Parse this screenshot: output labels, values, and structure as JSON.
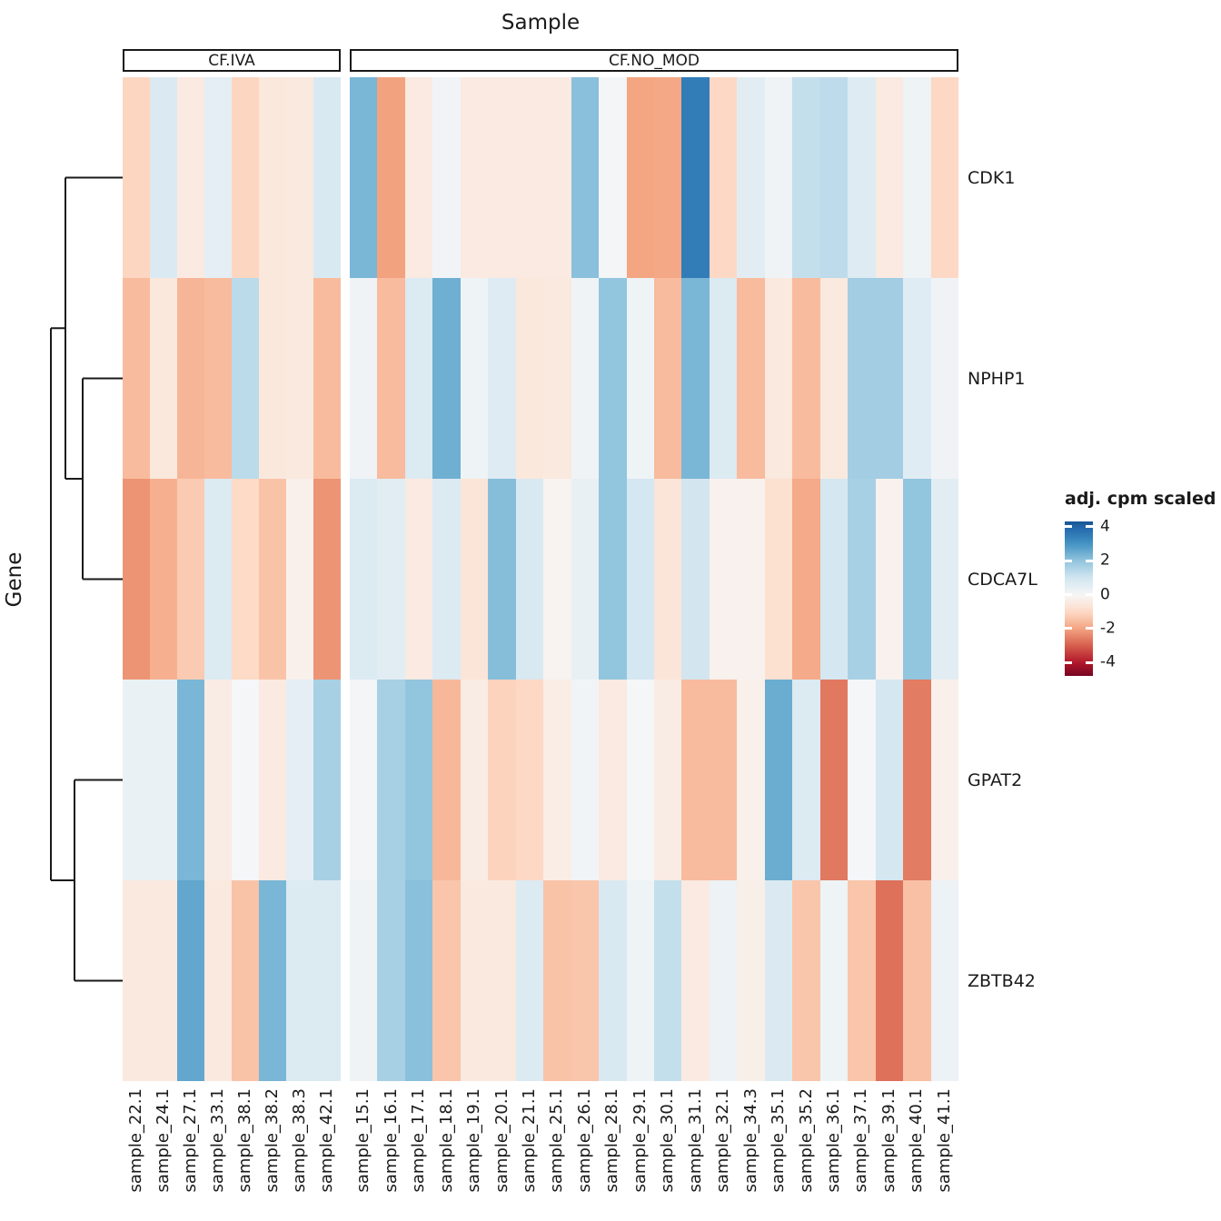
{
  "chart": {
    "type": "heatmap",
    "title": "Sample",
    "y_axis_title": "Gene",
    "legend": {
      "title": "adj. cpm scaled",
      "ticks": [
        "4",
        "2",
        "0",
        "-2",
        "-4"
      ],
      "tick_values": [
        4,
        2,
        0,
        -2,
        -4
      ]
    },
    "colormap": {
      "name": "RdBu",
      "domain": [
        -5,
        5
      ],
      "anchors": [
        [
          -5,
          "#67001f"
        ],
        [
          -4,
          "#b2182b"
        ],
        [
          -3,
          "#d6604d"
        ],
        [
          -2,
          "#f4a582"
        ],
        [
          -1,
          "#fddbc7"
        ],
        [
          0,
          "#f7f7f7"
        ],
        [
          1,
          "#d1e5f0"
        ],
        [
          2,
          "#92c5de"
        ],
        [
          3,
          "#4393c3"
        ],
        [
          4,
          "#2166ac"
        ],
        [
          5,
          "#053061"
        ]
      ]
    },
    "chart_data": {
      "type": "heatmap",
      "column_groups": [
        {
          "label": "CF.IVA",
          "samples": [
            "sample_22.1",
            "sample_24.1",
            "sample_27.1",
            "sample_33.1",
            "sample_38.1",
            "sample_38.2",
            "sample_38.3",
            "sample_42.1"
          ]
        },
        {
          "label": "CF.NO_MOD",
          "samples": [
            "sample_15.1",
            "sample_16.1",
            "sample_17.1",
            "sample_18.1",
            "sample_19.1",
            "sample_20.1",
            "sample_21.1",
            "sample_25.1",
            "sample_26.1",
            "sample_28.1",
            "sample_29.1",
            "sample_30.1",
            "sample_31.1",
            "sample_32.1",
            "sample_34.3",
            "sample_35.1",
            "sample_35.2",
            "sample_36.1",
            "sample_37.1",
            "sample_39.1",
            "sample_40.1",
            "sample_41.1"
          ]
        }
      ],
      "genes": [
        "CDK1",
        "NPHP1",
        "CDCA7L",
        "GPAT2",
        "ZBTB42"
      ],
      "values": {
        "CDK1": [
          -1.1,
          0.75,
          -0.45,
          0.5,
          -1.1,
          -0.55,
          -0.5,
          0.8,
          2.3,
          -2.05,
          -0.45,
          0.15,
          -0.45,
          -0.45,
          -0.45,
          -0.45,
          2.1,
          0.1,
          -2.0,
          -1.95,
          3.5,
          -1.05,
          0.55,
          0.2,
          1.2,
          1.3,
          0.65,
          -0.45,
          0.25,
          -1.05
        ],
        "NPHP1": [
          -1.6,
          -0.55,
          -1.7,
          -1.6,
          1.35,
          -0.55,
          -0.5,
          -1.6,
          0.2,
          -1.6,
          0.7,
          2.45,
          0.25,
          0.65,
          -0.55,
          -0.5,
          0.2,
          2.0,
          0.25,
          -1.6,
          2.3,
          0.7,
          -1.6,
          -0.5,
          -1.6,
          -0.5,
          1.75,
          1.75,
          0.6,
          0.2
        ],
        "CDCA7L": [
          -2.25,
          -1.8,
          -1.3,
          0.7,
          -1.0,
          -1.45,
          -0.25,
          -2.25,
          0.7,
          0.55,
          -0.45,
          0.7,
          -0.65,
          2.15,
          0.8,
          -0.15,
          0.4,
          2.0,
          0.9,
          -0.65,
          0.95,
          -0.2,
          -0.2,
          -0.8,
          -1.9,
          0.9,
          1.65,
          -0.2,
          2.0,
          0.55
        ],
        "GPAT2": [
          0.35,
          0.35,
          2.3,
          -0.4,
          0.05,
          -0.45,
          0.5,
          1.65,
          0.1,
          1.65,
          2.0,
          -1.65,
          -0.4,
          -1.15,
          -1.05,
          -0.35,
          0.15,
          -0.45,
          0.05,
          -0.4,
          -1.6,
          -1.6,
          -0.25,
          2.5,
          0.7,
          -2.65,
          0.05,
          0.9,
          -2.6,
          -0.25
        ],
        "ZBTB42": [
          -0.5,
          -0.5,
          2.6,
          -0.5,
          -1.45,
          2.3,
          0.7,
          0.7,
          0.2,
          1.65,
          2.1,
          -1.4,
          -0.5,
          -0.5,
          0.7,
          -1.45,
          -1.4,
          0.8,
          0.25,
          1.2,
          -0.45,
          0.3,
          -0.3,
          0.75,
          -1.4,
          0.25,
          -1.4,
          -2.75,
          -1.5,
          0.3
        ]
      },
      "row_dendrogram": [
        [
          "CDK1",
          [
            "NPHP1",
            "CDCA7L"
          ]
        ],
        [
          "GPAT2",
          "ZBTB42"
        ]
      ],
      "value_range": [
        -4,
        4
      ],
      "legend_position": "right"
    }
  }
}
